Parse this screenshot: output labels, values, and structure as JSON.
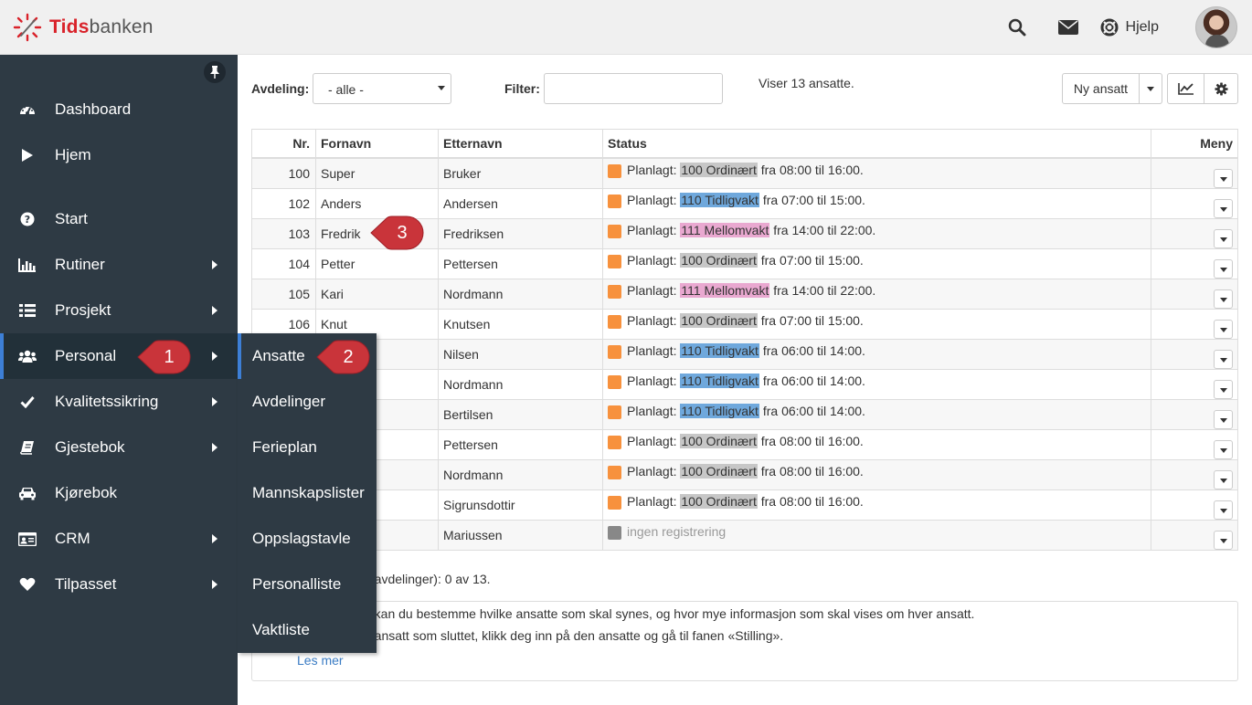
{
  "header": {
    "logo_part1": "Tids",
    "logo_part2": "banken",
    "help_label": "Hjelp",
    "icons": [
      "search-icon",
      "envelope-icon",
      "lifebuoy-icon"
    ]
  },
  "sidebar": {
    "items": [
      {
        "label": "Dashboard",
        "icon": "dashboard-icon"
      },
      {
        "label": "Hjem",
        "icon": "play-icon"
      },
      {
        "label": "Start",
        "icon": "question-circle-icon"
      },
      {
        "label": "Rutiner",
        "icon": "bar-chart-icon"
      },
      {
        "label": "Prosjekt",
        "icon": "list-icon"
      },
      {
        "label": "Personal",
        "icon": "users-icon"
      },
      {
        "label": "Kvalitetssikring",
        "icon": "check-icon"
      },
      {
        "label": "Gjestebok",
        "icon": "book-icon"
      },
      {
        "label": "Kjørebok",
        "icon": "car-icon"
      },
      {
        "label": "CRM",
        "icon": "id-card-icon"
      },
      {
        "label": "Tilpasset",
        "icon": "heart-icon"
      }
    ],
    "active": "Personal"
  },
  "submenu": {
    "items": [
      "Ansatte",
      "Avdelinger",
      "Ferieplan",
      "Mannskapslister",
      "Oppslagstavle",
      "Personalliste",
      "Vaktliste"
    ],
    "active": "Ansatte"
  },
  "callouts": [
    "1",
    "2",
    "3"
  ],
  "toolbar": {
    "department_label": "Avdeling:",
    "department_value": "- alle -",
    "filter_label": "Filter:",
    "filter_value": "",
    "showing_text": "Viser 13 ansatte.",
    "new_employee_label": "Ny ansatt"
  },
  "table": {
    "headers": {
      "nr": "Nr.",
      "first": "Fornavn",
      "last": "Etternavn",
      "status": "Status",
      "menu": "Meny"
    },
    "rows": [
      {
        "nr": "100",
        "first": "Super",
        "last": "Bruker",
        "prefix": "Planlagt:",
        "shift": "100 Ordinært",
        "kind": "ord",
        "time": "fra 08:00 til 16:00."
      },
      {
        "nr": "102",
        "first": "Anders",
        "last": "Andersen",
        "prefix": "Planlagt:",
        "shift": "110 Tidligvakt",
        "kind": "tid",
        "time": "fra 07:00 til 15:00."
      },
      {
        "nr": "103",
        "first": "Fredrik",
        "last": "Fredriksen",
        "prefix": "Planlagt:",
        "shift": "111 Mellomvakt",
        "kind": "mel",
        "time": "fra 14:00 til 22:00."
      },
      {
        "nr": "104",
        "first": "Petter",
        "last": "Pettersen",
        "prefix": "Planlagt:",
        "shift": "100 Ordinært",
        "kind": "ord",
        "time": "fra 07:00 til 15:00."
      },
      {
        "nr": "105",
        "first": "Kari",
        "last": "Nordmann",
        "prefix": "Planlagt:",
        "shift": "111 Mellomvakt",
        "kind": "mel",
        "time": "fra 14:00 til 22:00."
      },
      {
        "nr": "106",
        "first": "Knut",
        "last": "Knutsen",
        "prefix": "Planlagt:",
        "shift": "100 Ordinært",
        "kind": "ord",
        "time": "fra 07:00 til 15:00."
      },
      {
        "nr": "",
        "first": "",
        "last": "Nilsen",
        "prefix": "Planlagt:",
        "shift": "110 Tidligvakt",
        "kind": "tid",
        "time": "fra 06:00 til 14:00."
      },
      {
        "nr": "",
        "first": "",
        "last": "Nordmann",
        "prefix": "Planlagt:",
        "shift": "110 Tidligvakt",
        "kind": "tid",
        "time": "fra 06:00 til 14:00."
      },
      {
        "nr": "",
        "first": "",
        "last": "Bertilsen",
        "prefix": "Planlagt:",
        "shift": "110 Tidligvakt",
        "kind": "tid",
        "time": "fra 06:00 til 14:00."
      },
      {
        "nr": "",
        "first": "",
        "last": "Pettersen",
        "prefix": "Planlagt:",
        "shift": "100 Ordinært",
        "kind": "ord",
        "time": "fra 08:00 til 16:00."
      },
      {
        "nr": "",
        "first": "",
        "last": "Nordmann",
        "prefix": "Planlagt:",
        "shift": "100 Ordinært",
        "kind": "ord",
        "time": "fra 08:00 til 16:00."
      },
      {
        "nr": "",
        "first": "",
        "last": "Sigrunsdottir",
        "prefix": "Planlagt:",
        "shift": "100 Ordinært",
        "kind": "ord",
        "time": "fra 08:00 til 16:00."
      },
      {
        "nr": "",
        "first": "",
        "last": "Mariussen",
        "prefix": "",
        "shift": "",
        "kind": "none",
        "time": "ingen registrering"
      }
    ]
  },
  "footer": {
    "count_text": "e avdelinger): 0 av 13.",
    "info_line1": "e kan du bestemme hvilke ansatte som skal synes, og hvor mye informasjon som skal vises om hver ansatt.",
    "info_line2": "n ansatt som sluttet, klikk deg inn på den ansatte og gå til fanen «Stilling».",
    "read_more": "Les mer"
  }
}
